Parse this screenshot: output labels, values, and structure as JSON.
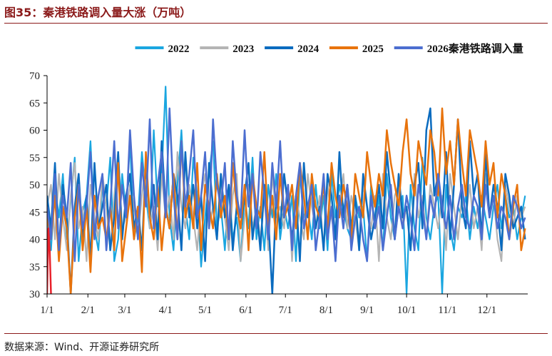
{
  "figure": {
    "title": "图35：秦港铁路调入量大涨（万吨）",
    "source": "数据来源：Wind、开源证券研究所"
  },
  "chart_data": {
    "type": "line",
    "title": "秦港铁路调入量大涨（万吨）",
    "xlabel": "",
    "ylabel": "",
    "ylim": [
      30,
      70
    ],
    "yticks": [
      30,
      35,
      40,
      45,
      50,
      55,
      60,
      65,
      70
    ],
    "xticks": [
      "1/1",
      "2/1",
      "3/1",
      "4/1",
      "5/1",
      "6/1",
      "7/1",
      "8/1",
      "9/1",
      "10/1",
      "11/1",
      "12/1"
    ],
    "xtick_days": [
      0,
      31,
      59,
      90,
      120,
      151,
      181,
      212,
      243,
      273,
      304,
      334
    ],
    "x_range_days": [
      0,
      365
    ],
    "legend_position": "top",
    "grid": false,
    "series": [
      {
        "name": "2022",
        "color": "#1aa6e0",
        "width": 2.2,
        "sample_every_days": 3,
        "values": [
          44,
          38,
          50,
          44,
          52,
          40,
          47,
          55,
          36,
          45,
          48,
          58,
          42,
          38,
          50,
          46,
          55,
          36,
          40,
          52,
          45,
          58,
          40,
          44,
          56,
          48,
          42,
          60,
          46,
          52,
          68,
          44,
          38,
          50,
          60,
          46,
          40,
          55,
          48,
          35,
          44,
          52,
          58,
          42,
          46,
          38,
          50,
          40,
          44,
          36,
          48,
          42,
          55,
          40,
          46,
          38,
          50,
          44,
          52,
          40,
          46,
          42,
          48,
          36,
          52,
          44,
          46,
          40,
          50,
          42,
          48,
          38,
          52,
          44,
          50,
          46,
          42,
          40,
          48,
          44,
          46,
          36,
          50,
          42,
          48,
          38,
          52,
          44,
          40,
          46,
          48,
          30,
          50,
          42,
          38,
          55,
          44,
          40,
          46,
          48,
          30,
          50,
          42,
          38,
          46,
          44,
          48,
          40,
          46,
          42,
          48,
          44,
          40,
          46,
          50,
          42,
          48,
          44,
          46,
          40,
          44,
          48
        ]
      },
      {
        "name": "2023",
        "color": "#b4b4b4",
        "width": 2.2,
        "sample_every_days": 3,
        "values": [
          46,
          50,
          40,
          52,
          44,
          38,
          48,
          54,
          42,
          46,
          36,
          50,
          44,
          40,
          52,
          46,
          38,
          48,
          56,
          42,
          44,
          50,
          46,
          40,
          48,
          54,
          42,
          46,
          38,
          52,
          44,
          48,
          40,
          56,
          46,
          42,
          50,
          44,
          38,
          48,
          52,
          42,
          46,
          40,
          50,
          44,
          38,
          48,
          52,
          36,
          44,
          50,
          42,
          46,
          40,
          48,
          38,
          52,
          44,
          46,
          42,
          50,
          36,
          48,
          44,
          40,
          52,
          46,
          42,
          48,
          38,
          50,
          44,
          40,
          46,
          52,
          42,
          48,
          44,
          38,
          50,
          46,
          42,
          48,
          36,
          52,
          44,
          40,
          48,
          50,
          42,
          46,
          38,
          52,
          44,
          48,
          40,
          50,
          46,
          42,
          48,
          38,
          52,
          46,
          40,
          48,
          44,
          50,
          42,
          46,
          38,
          52,
          44,
          48,
          40,
          36,
          50,
          46,
          42,
          48,
          44,
          46
        ]
      },
      {
        "name": "2024",
        "color": "#0a6bbf",
        "width": 2.5,
        "sample_every_days": 3,
        "values": [
          48,
          42,
          54,
          38,
          50,
          44,
          30,
          46,
          52,
          40,
          48,
          36,
          54,
          42,
          46,
          50,
          38,
          44,
          56,
          40,
          48,
          52,
          42,
          46,
          38,
          54,
          44,
          50,
          40,
          58,
          46,
          42,
          52,
          48,
          38,
          56,
          44,
          50,
          42,
          48,
          36,
          54,
          46,
          40,
          52,
          44,
          50,
          38,
          46,
          42,
          48,
          54,
          40,
          46,
          38,
          50,
          44,
          30,
          48,
          42,
          52,
          46,
          40,
          48,
          36,
          54,
          44,
          50,
          42,
          46,
          38,
          52,
          48,
          40,
          56,
          44,
          50,
          42,
          48,
          38,
          52,
          46,
          40,
          44,
          50,
          42,
          56,
          48,
          40,
          52,
          44,
          46,
          38,
          50,
          54,
          42,
          60,
          64,
          48,
          52,
          44,
          56,
          40,
          50,
          62,
          46,
          42,
          58,
          48,
          52,
          40,
          56,
          44,
          50,
          46,
          38,
          52,
          48,
          42,
          44,
          46,
          40
        ]
      },
      {
        "name": "2025",
        "color": "#e8730c",
        "width": 2.5,
        "sample_every_days": 3,
        "values": [
          44,
          40,
          48,
          36,
          46,
          42,
          30,
          44,
          50,
          38,
          46,
          34,
          48,
          42,
          44,
          40,
          46,
          38,
          54,
          36,
          42,
          48,
          40,
          46,
          34,
          56,
          44,
          40,
          50,
          38,
          46,
          42,
          52,
          40,
          58,
          44,
          48,
          42,
          54,
          38,
          50,
          46,
          42,
          52,
          44,
          48,
          40,
          54,
          46,
          42,
          50,
          38,
          52,
          46,
          44,
          56,
          42,
          48,
          40,
          52,
          44,
          46,
          50,
          42,
          54,
          48,
          40,
          52,
          46,
          44,
          50,
          42,
          54,
          48,
          44,
          50,
          46,
          40,
          52,
          48,
          44,
          56,
          50,
          46,
          52,
          48,
          60,
          54,
          50,
          46,
          56,
          62,
          52,
          48,
          58,
          54,
          50,
          60,
          56,
          48,
          64,
          52,
          58,
          50,
          62,
          54,
          48,
          60,
          56,
          52,
          46,
          58,
          50,
          54,
          44,
          52,
          48,
          40,
          46,
          50,
          38,
          42
        ]
      },
      {
        "name": "2026秦港铁路调入量",
        "color": "#4c6ed0",
        "width": 2.5,
        "sample_every_days": 3,
        "values": [
          46,
          40,
          52,
          38,
          48,
          44,
          54,
          36,
          50,
          42,
          46,
          56,
          40,
          48,
          52,
          38,
          46,
          58,
          42,
          50,
          44,
          60,
          48,
          40,
          54,
          46,
          62,
          42,
          50,
          56,
          44,
          64,
          48,
          40,
          58,
          46,
          52,
          60,
          44,
          48,
          56,
          42,
          62,
          50,
          46,
          54,
          40,
          58,
          48,
          44,
          60,
          46,
          52,
          42,
          56,
          48,
          40,
          54,
          46,
          58,
          44,
          50,
          38,
          48,
          54,
          42,
          46,
          50,
          38,
          44,
          52,
          40,
          46,
          36,
          48,
          42,
          50,
          38,
          44,
          46,
          40,
          36,
          48,
          42,
          46,
          38,
          44,
          50,
          40,
          46,
          42,
          48,
          44,
          38,
          50,
          46,
          40,
          48,
          44,
          52,
          46,
          42,
          48,
          40,
          46,
          50,
          44,
          42,
          48,
          46,
          40,
          50,
          44,
          48,
          42,
          46,
          44,
          40,
          48,
          46,
          42,
          44
        ]
      },
      {
        "name": "",
        "color": "#e8202a",
        "width": 2.5,
        "sample_every_days": 1,
        "values": [
          30,
          42,
          38,
          30
        ]
      }
    ]
  }
}
